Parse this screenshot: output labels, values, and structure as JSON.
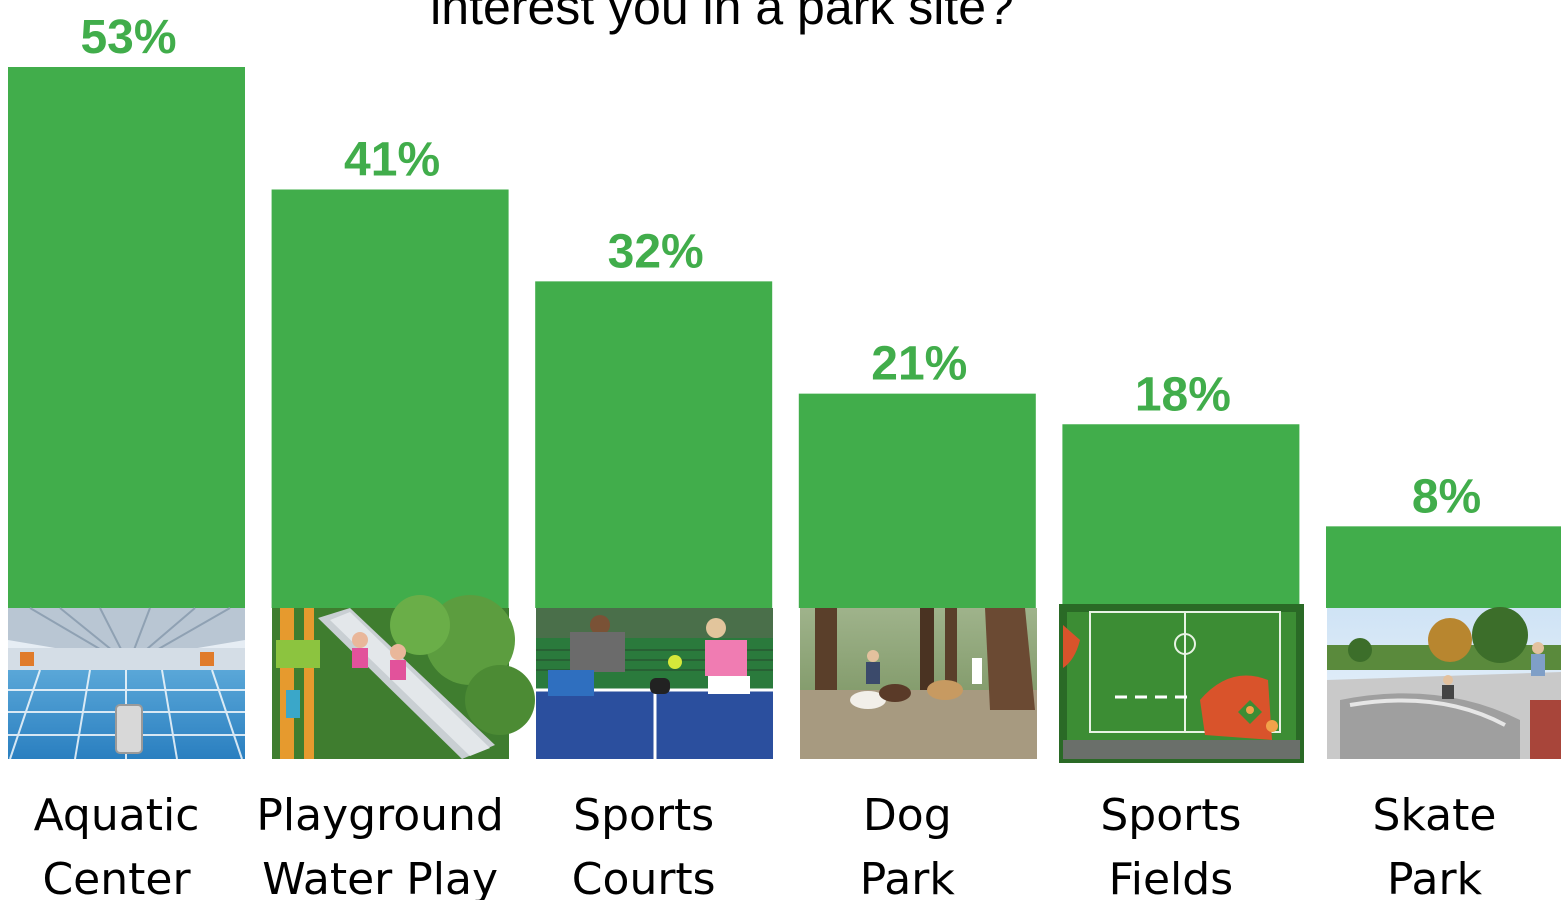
{
  "chart_data": {
    "type": "bar",
    "title": "interest you in a park site?",
    "categories": [
      [
        "Aquatic",
        "Center"
      ],
      [
        "Playground",
        "Water Play"
      ],
      [
        "Sports",
        "Courts"
      ],
      [
        "Dog",
        "Park"
      ],
      [
        "Sports",
        "Fields"
      ],
      [
        "Skate",
        "Park"
      ]
    ],
    "values": [
      53,
      41,
      32,
      21,
      18,
      8
    ],
    "value_labels": [
      "53%",
      "41%",
      "32%",
      "21%",
      "18%",
      "8%"
    ],
    "unit": "%",
    "grid": false,
    "legend": "none"
  },
  "colors": {
    "bar": "#41AD4B",
    "label": "#41AD4B"
  },
  "photos": [
    "pool-photo",
    "slide-playground-photo",
    "pickleball-photo",
    "dog-park-photo",
    "ball-field-aerial-photo",
    "skate-bowl-photo"
  ]
}
